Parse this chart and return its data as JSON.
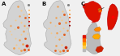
{
  "panel_bg": "#f0f0f0",
  "map_fill": "#d3d3d3",
  "map_edge": "#aaaaaa",
  "panel_labels": [
    "A",
    "B",
    "C"
  ],
  "dot_colors": [
    "#f5c88a",
    "#f0a050",
    "#e06020",
    "#cc2200",
    "#991100"
  ],
  "legend_colors_ab": [
    "#f5c88a",
    "#f0a050",
    "#e06020",
    "#cc2200",
    "#991100"
  ],
  "legend_colors_c": [
    "#ff2200",
    "#ff6600",
    "#ff9900",
    "#ffcc00",
    "#cccccc"
  ],
  "scot_red": "#dd1100",
  "scot_orange": "#ff6600",
  "eng_orange": "#ff9900",
  "eng_yellow": "#ffcc33",
  "se_red": "#cc2200",
  "inset_bg": "#aaaaaa"
}
